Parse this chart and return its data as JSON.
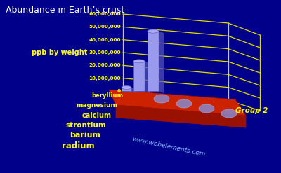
{
  "title": "Abundance in Earth’s crust",
  "ylabel": "ppb by weight",
  "xlabel": "Group 2",
  "watermark": "www.webelements.com",
  "elements": [
    "beryllium",
    "magnesium",
    "calcium",
    "strontium",
    "barium",
    "radium"
  ],
  "values": [
    2800000,
    23300000,
    46600000,
    360000,
    500000,
    0.9
  ],
  "ylim_max": 60000000,
  "yticks": [
    0,
    10000000,
    20000000,
    30000000,
    40000000,
    50000000,
    60000000
  ],
  "ytick_labels": [
    "0",
    "10,000,000",
    "20,000,000",
    "30,000,000",
    "40,000,000",
    "50,000,000",
    "60,000,000"
  ],
  "background_color": "#00008B",
  "bar_color_light": "#9999ee",
  "bar_color_dark": "#5555bb",
  "grid_color": "#dddd00",
  "platform_color": "#cc2200",
  "platform_circle_color": "#8888cc",
  "label_color": "#ffff00",
  "title_color": "#ffffff",
  "tick_color": "#ffff00",
  "watermark_color": "#88bbff",
  "group2_color": "#ffff00"
}
